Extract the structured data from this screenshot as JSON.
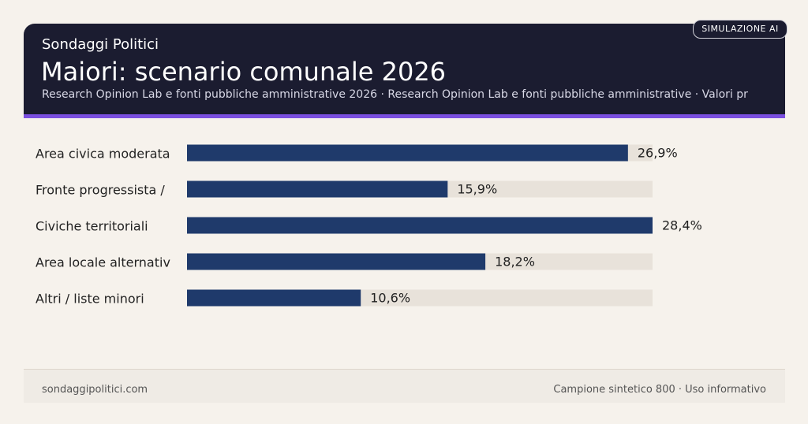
{
  "header": {
    "kicker": "Sondaggi Politici",
    "badge": "SIMULAZIONE AI"
  },
  "chart_data": {
    "type": "bar",
    "orientation": "horizontal",
    "title": "Maiori: scenario comunale 2026",
    "subtitle": "Research Opinion Lab e fonti pubbliche amministrative 2026 · Research Opinion Lab e fonti pubbliche amministrative · Valori pr",
    "categories": [
      "Area civica moderata",
      "Fronte progressista /",
      "Civiche territoriali",
      "Area locale alternativ",
      "Altri / liste minori"
    ],
    "values": [
      26.9,
      15.9,
      28.4,
      18.2,
      10.6
    ],
    "value_labels": [
      "26,9%",
      "15,9%",
      "28,4%",
      "18,2%",
      "10,6%"
    ],
    "color": "#1f3a6b",
    "xlim": [
      0,
      28.4
    ]
  },
  "footer": {
    "left": "sondaggipolitici.com",
    "right": "Campione sintetico 800 · Uso informativo"
  }
}
